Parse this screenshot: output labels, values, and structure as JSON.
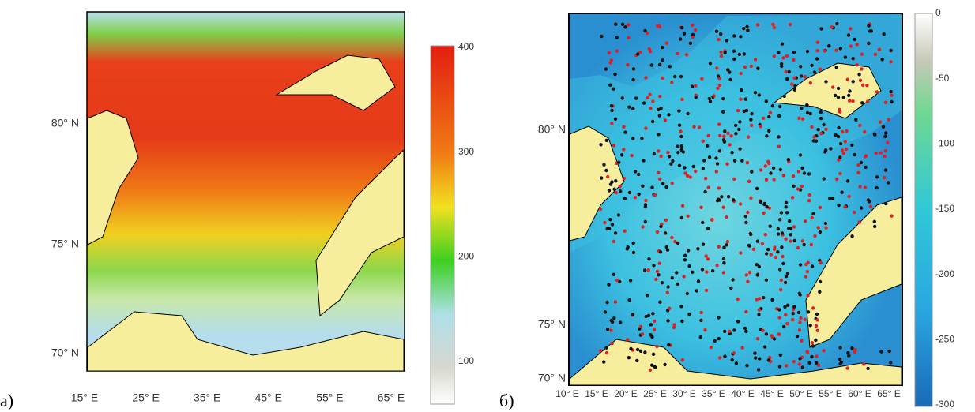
{
  "panels": [
    {
      "label": "а)",
      "lat_ticks": [
        "80° N",
        "75° N",
        "70° N"
      ],
      "lon_ticks": [
        "15° E",
        "25° E",
        "35° E",
        "45° E",
        "55° E",
        "65° E"
      ],
      "colorbar_ticks": [
        "400",
        "300",
        "200",
        "100"
      ]
    },
    {
      "label": "б)",
      "lat_ticks": [
        "80° N",
        "75° N",
        "70° N"
      ],
      "lon_ticks": [
        "10° E",
        "15° E",
        "20° E",
        "25° E",
        "30° E",
        "35° E",
        "40° E",
        "45° E",
        "50° E",
        "55° E",
        "60° E",
        "65° E"
      ],
      "colorbar_ticks": [
        "0",
        "-50",
        "-100",
        "-150",
        "-200",
        "-250",
        "-300"
      ]
    }
  ]
}
